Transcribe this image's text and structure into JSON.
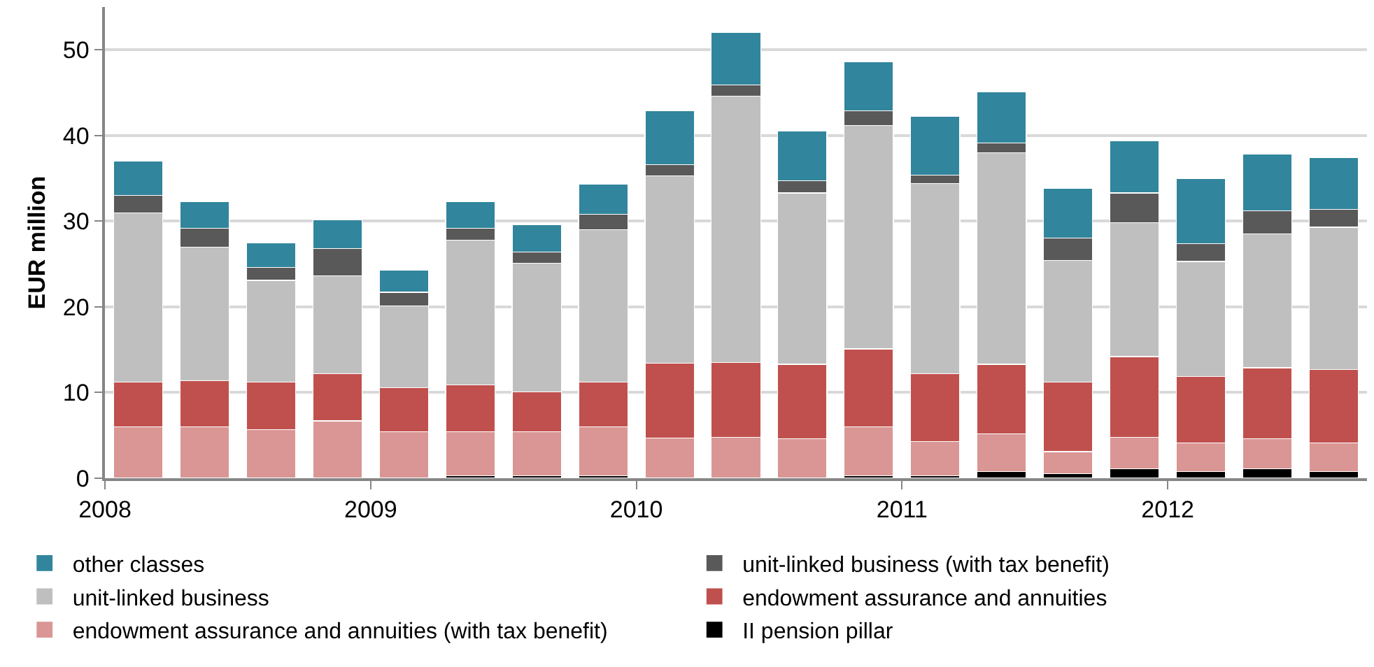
{
  "chart_data": {
    "type": "bar",
    "stacked": true,
    "ylabel": "EUR million",
    "x": [
      2008.125,
      2008.375,
      2008.625,
      2008.875,
      2009.125,
      2009.375,
      2009.625,
      2009.875,
      2010.125,
      2010.375,
      2010.625,
      2010.875,
      2011.125,
      2011.375,
      2011.625,
      2011.875,
      2012.125,
      2012.375,
      2012.625
    ],
    "xlim": [
      2008,
      2012.75
    ],
    "xticks": [
      2008,
      2009,
      2010,
      2011,
      2012
    ],
    "ylim": [
      0,
      55
    ],
    "yticks": [
      0,
      10,
      20,
      30,
      40,
      50
    ],
    "grid": "y",
    "legend": "bottom",
    "series": [
      {
        "name": "II pension pillar",
        "color": "#000000",
        "values": [
          0,
          0,
          0,
          0,
          0,
          0.3,
          0.3,
          0.3,
          0,
          0,
          0,
          0.3,
          0.3,
          0.8,
          0.5,
          1.1,
          0.8,
          1.1,
          0.8
        ]
      },
      {
        "name": "endowment assurance and annuities (with tax benefit)",
        "color": "#d99694",
        "values": [
          6.0,
          6.0,
          5.7,
          6.7,
          5.4,
          5.1,
          5.1,
          5.7,
          4.7,
          4.8,
          4.6,
          5.7,
          4.0,
          4.4,
          2.6,
          3.7,
          3.3,
          3.5,
          3.3
        ]
      },
      {
        "name": "endowment assurance and annuities",
        "color": "#c0504d",
        "values": [
          5.2,
          5.4,
          5.5,
          5.5,
          5.2,
          5.5,
          4.7,
          5.2,
          8.7,
          8.7,
          8.7,
          9.1,
          7.9,
          8.1,
          8.1,
          9.4,
          7.8,
          8.3,
          8.6
        ]
      },
      {
        "name": "unit-linked business",
        "color": "#bfbfbf",
        "values": [
          19.8,
          15.6,
          11.9,
          11.4,
          9.5,
          16.9,
          15.0,
          17.8,
          21.9,
          31.1,
          20.0,
          26.1,
          22.2,
          24.7,
          14.2,
          15.6,
          13.4,
          15.6,
          16.6
        ]
      },
      {
        "name": "unit-linked business (with tax benefit)",
        "color": "#595959",
        "values": [
          2.0,
          2.2,
          1.5,
          3.2,
          1.6,
          1.4,
          1.3,
          1.8,
          1.3,
          1.3,
          1.4,
          1.7,
          1.0,
          1.1,
          2.6,
          3.5,
          2.1,
          2.7,
          2.1
        ]
      },
      {
        "name": "other classes",
        "color": "#31859c",
        "values": [
          4.0,
          3.1,
          2.9,
          3.4,
          2.6,
          3.1,
          3.2,
          3.5,
          6.3,
          6.1,
          5.8,
          5.7,
          6.8,
          6.0,
          5.8,
          6.1,
          7.6,
          6.6,
          6.0
        ]
      }
    ]
  }
}
